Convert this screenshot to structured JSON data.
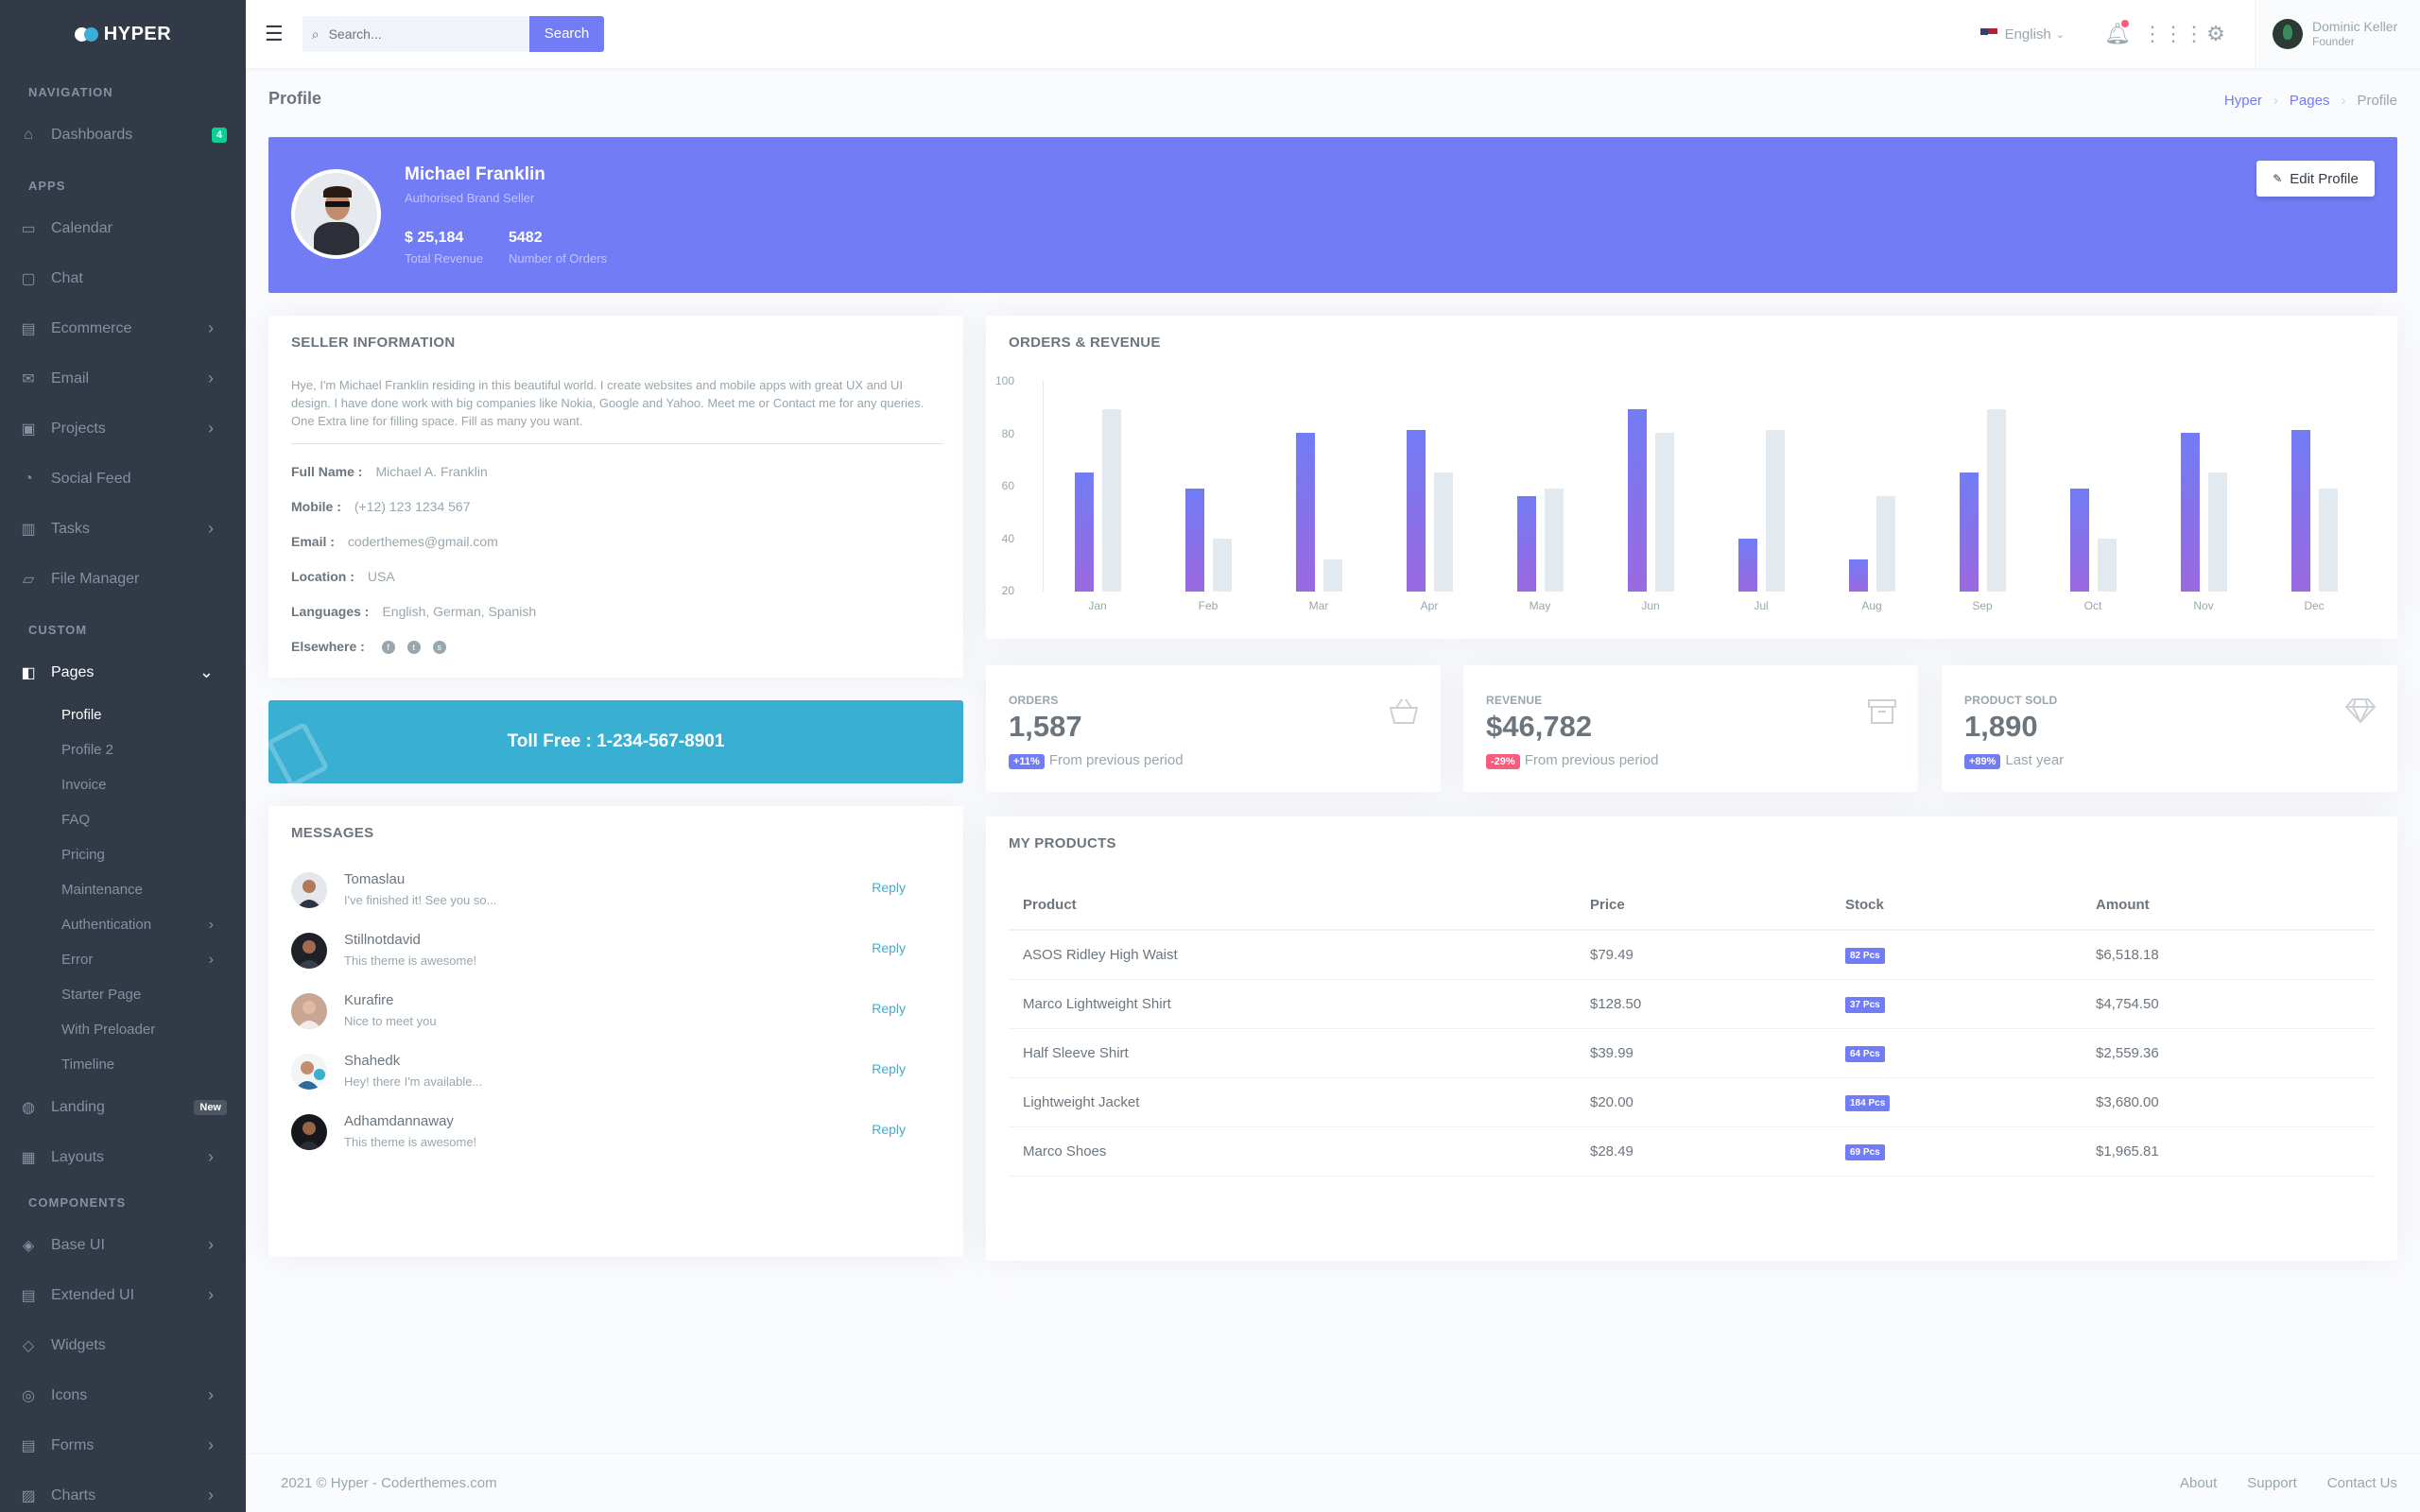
{
  "sidebar": {
    "brand": "HYPER",
    "sections": {
      "navigation": "NAVIGATION",
      "apps": "APPS",
      "custom": "CUSTOM",
      "components": "COMPONENTS"
    },
    "dashboards": {
      "label": "Dashboards",
      "badge": "4"
    },
    "apps": [
      "Calendar",
      "Chat",
      "Ecommerce",
      "Email",
      "Projects",
      "Social Feed",
      "Tasks",
      "File Manager"
    ],
    "pages": {
      "label": "Pages",
      "items": [
        "Profile",
        "Profile 2",
        "Invoice",
        "FAQ",
        "Pricing",
        "Maintenance",
        "Authentication",
        "Error",
        "Starter Page",
        "With Preloader",
        "Timeline"
      ]
    },
    "landing": {
      "label": "Landing",
      "badge": "New"
    },
    "layouts": "Layouts",
    "components": [
      "Base UI",
      "Extended UI",
      "Widgets",
      "Icons",
      "Forms",
      "Charts"
    ]
  },
  "topbar": {
    "search_placeholder": "Search...",
    "search_button": "Search",
    "language": "English",
    "user_name": "Dominic Keller",
    "user_role": "Founder"
  },
  "page": {
    "title": "Profile",
    "breadcrumb": [
      "Hyper",
      "Pages",
      "Profile"
    ]
  },
  "profile": {
    "name": "Michael Franklin",
    "role": "Authorised Brand Seller",
    "revenue": "$ 25,184",
    "revenue_label": "Total Revenue",
    "orders": "5482",
    "orders_label": "Number of Orders",
    "edit_button": "Edit Profile"
  },
  "seller": {
    "title": "SELLER INFORMATION",
    "bio_line1": "Hye, I'm Michael Franklin residing in this beautiful world. I create websites and mobile apps with great UX and UI",
    "bio_line2": "design. I have done work with big companies like Nokia, Google and Yahoo. Meet me or Contact me for any queries.",
    "bio_line3": "One Extra line for filling space. Fill as many you want.",
    "full_name_label": "Full Name :",
    "full_name": "Michael A. Franklin",
    "mobile_label": "Mobile :",
    "mobile": "(+12) 123 1234 567",
    "email_label": "Email :",
    "email": "coderthemes@gmail.com",
    "location_label": "Location :",
    "location": "USA",
    "languages_label": "Languages :",
    "languages": "English, German, Spanish",
    "elsewhere_label": "Elsewhere :"
  },
  "toll": {
    "text": "Toll Free : 1-234-567-8901"
  },
  "messages": {
    "title": "MESSAGES",
    "reply_label": "Reply",
    "items": [
      {
        "name": "Tomaslau",
        "text": "I've finished it! See you so..."
      },
      {
        "name": "Stillnotdavid",
        "text": "This theme is awesome!"
      },
      {
        "name": "Kurafire",
        "text": "Nice to meet you"
      },
      {
        "name": "Shahedk",
        "text": "Hey! there I'm available..."
      },
      {
        "name": "Adhamdannaway",
        "text": "This theme is awesome!"
      }
    ]
  },
  "chart_data": {
    "type": "bar",
    "title": "ORDERS & REVENUE",
    "categories": [
      "Jan",
      "Feb",
      "Mar",
      "Apr",
      "May",
      "Jun",
      "Jul",
      "Aug",
      "Sep",
      "Oct",
      "Nov",
      "Dec"
    ],
    "series": [
      {
        "values": [
          65,
          59,
          80,
          81,
          56,
          89,
          40,
          32,
          65,
          59,
          80,
          81
        ],
        "color": "#727cf5"
      },
      {
        "values": [
          89,
          40,
          32,
          65,
          59,
          80,
          81,
          56,
          89,
          40,
          65,
          59
        ],
        "color": "#e3eaef"
      }
    ],
    "ylim": [
      20,
      100
    ],
    "yticks": [
      "100",
      "80",
      "60",
      "40",
      "20"
    ]
  },
  "stats": [
    {
      "label": "ORDERS",
      "value": "1,587",
      "change": "+11%",
      "change_color": "#727cf5",
      "foot": "From previous period",
      "icon": "basket-icon"
    },
    {
      "label": "REVENUE",
      "value": "$46,782",
      "change": "-29%",
      "change_color": "#fa5c7c",
      "foot": "From previous period",
      "icon": "archive-icon"
    },
    {
      "label": "PRODUCT SOLD",
      "value": "1,890",
      "change": "+89%",
      "change_color": "#727cf5",
      "foot": "Last year",
      "icon": "diamond-icon"
    }
  ],
  "products": {
    "title": "MY PRODUCTS",
    "headers": [
      "Product",
      "Price",
      "Stock",
      "Amount"
    ],
    "rows": [
      {
        "product": "ASOS Ridley High Waist",
        "price": "$79.49",
        "stock": "82 Pcs",
        "amount": "$6,518.18"
      },
      {
        "product": "Marco Lightweight Shirt",
        "price": "$128.50",
        "stock": "37 Pcs",
        "amount": "$4,754.50"
      },
      {
        "product": "Half Sleeve Shirt",
        "price": "$39.99",
        "stock": "64 Pcs",
        "amount": "$2,559.36"
      },
      {
        "product": "Lightweight Jacket",
        "price": "$20.00",
        "stock": "184 Pcs",
        "amount": "$3,680.00"
      },
      {
        "product": "Marco Shoes",
        "price": "$28.49",
        "stock": "69 Pcs",
        "amount": "$1,965.81"
      }
    ]
  },
  "footer": {
    "copyright": "2021 © Hyper - Coderthemes.com",
    "links": [
      "About",
      "Support",
      "Contact Us"
    ]
  }
}
